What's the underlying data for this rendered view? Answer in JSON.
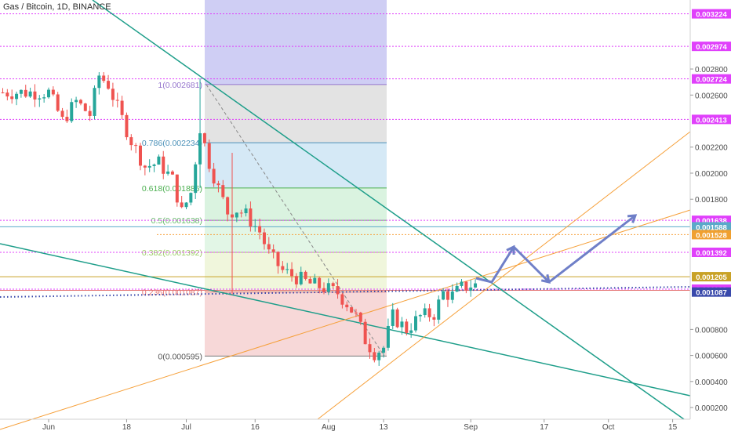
{
  "header": {
    "symbol_title": "Gas / Bitcoin, 1D, BINANCE"
  },
  "chart_data": {
    "type": "candlestick",
    "title": "Gas / Bitcoin, 1D, BINANCE",
    "x_labels": [
      {
        "label": "Jun",
        "day": 0
      },
      {
        "label": "18",
        "day": 17
      },
      {
        "label": "Jul",
        "day": 30
      },
      {
        "label": "16",
        "day": 45
      },
      {
        "label": "Aug",
        "day": 61
      },
      {
        "label": "13",
        "day": 73
      },
      {
        "label": "Sep",
        "day": 92
      },
      {
        "label": "17",
        "day": 108
      },
      {
        "label": "Oct",
        "day": 122
      },
      {
        "label": "15",
        "day": 136
      }
    ],
    "y_ticks": [
      "0.002800",
      "0.002600",
      "0.002200",
      "0.002000",
      "0.001800",
      "0.000800",
      "0.000600",
      "0.000400",
      "0.000200"
    ],
    "ylim": [
      0.00011,
      0.00333
    ],
    "price_labels": [
      {
        "value": "0.003224",
        "color": "#e040fb"
      },
      {
        "value": "0.002974",
        "color": "#e040fb"
      },
      {
        "value": "0.002724",
        "color": "#e040fb"
      },
      {
        "value": "0.002413",
        "color": "#e040fb"
      },
      {
        "value": "0.001638",
        "color": "#e040fb"
      },
      {
        "value": "0.001588",
        "color": "#5aa9c9"
      },
      {
        "value": "0.001528",
        "color": "#f0a030"
      },
      {
        "value": "0.001392",
        "color": "#e040fb"
      },
      {
        "value": "0.001205",
        "color": "#c9a227"
      },
      {
        "value": "0.001109",
        "color": "#e040fb"
      },
      {
        "value": "0.001087",
        "color": "#3949ab"
      }
    ],
    "fib_levels": [
      {
        "label": "1(0.002681)",
        "value": 0.002681,
        "fill": "#e0e0e0",
        "line": "#9575cd"
      },
      {
        "label": "0.786(0.002234)",
        "value": 0.002234,
        "fill": "#d0e7f5",
        "line": "#4a90b8"
      },
      {
        "label": "0.618(0.001886)",
        "value": 0.001886,
        "fill": "#d6f2dd",
        "line": "#4caf50"
      },
      {
        "label": "0.5(0.001638)",
        "value": 0.001638,
        "fill": "#dff5e3",
        "line": "#66bb6a"
      },
      {
        "label": "0.382(0.001392)",
        "value": 0.001392,
        "fill": "#eef5d8",
        "line": "#9ccc65"
      },
      {
        "label": "0.236(0.001087)",
        "value": 0.001087,
        "fill": "#f6d4d4",
        "line": "#e57373"
      },
      {
        "label": "0(0.000595)",
        "value": 0.000595,
        "fill": "",
        "line": "#777777"
      }
    ],
    "colors": {
      "up": "#26a69a",
      "down": "#ef5350",
      "trend": "#1e9e8a",
      "orange": "#f6a03a",
      "fib_top": "#c7c6f2",
      "arrows": "#6f7fc8",
      "magenta": "#e040fb"
    }
  }
}
